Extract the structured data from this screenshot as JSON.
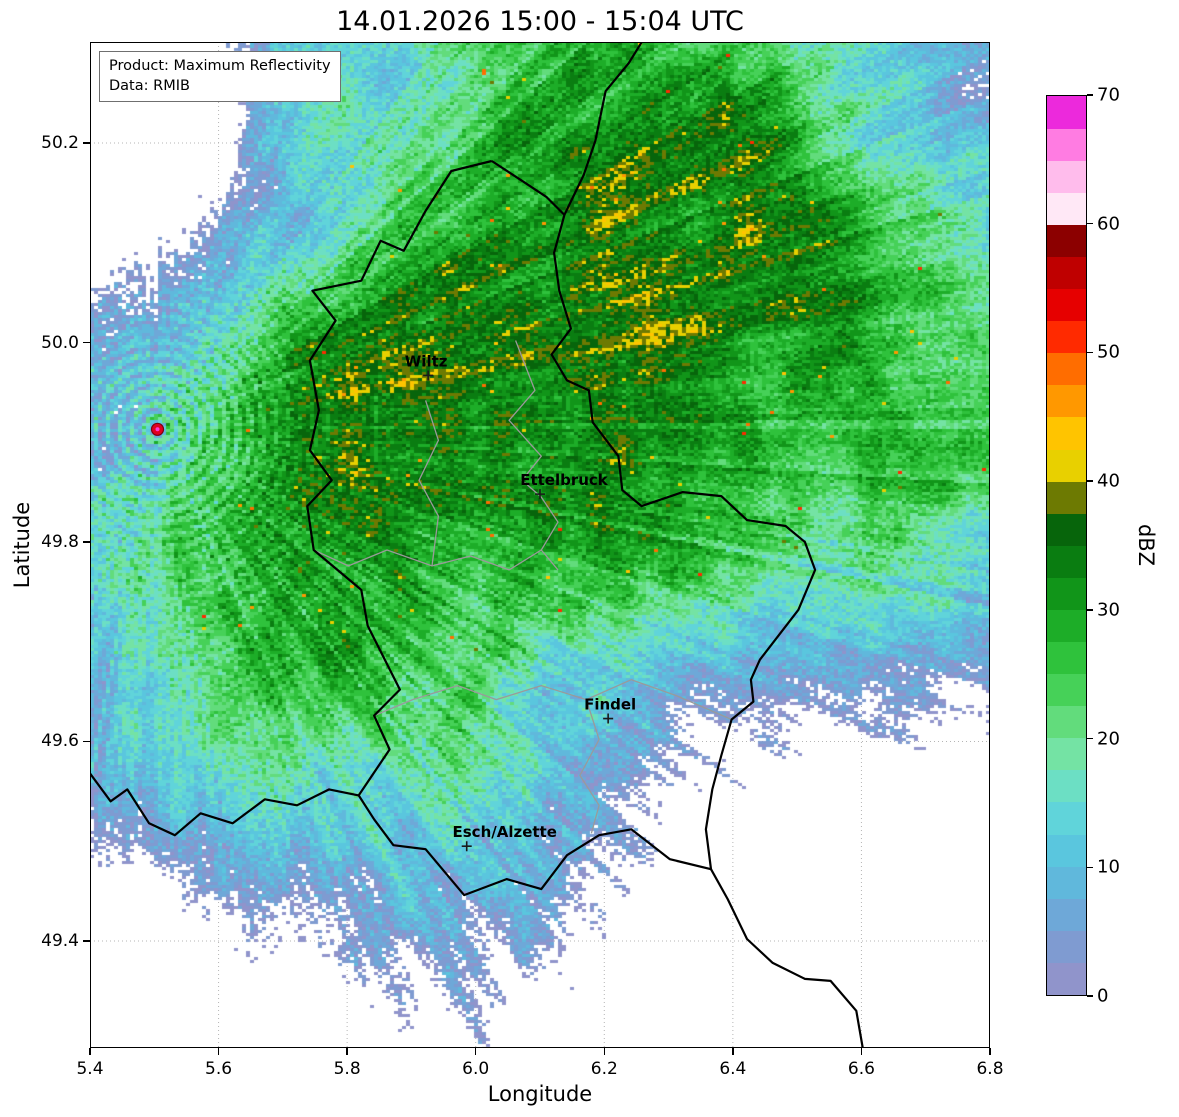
{
  "title": "14.01.2026 15:00 - 15:04 UTC",
  "info_box": {
    "product": "Product: Maximum Reflectivity",
    "data_source": "Data: RMIB"
  },
  "axes": {
    "xlabel": "Longitude",
    "ylabel": "Latitude",
    "x_range": [
      5.4,
      6.8
    ],
    "y_range": [
      49.2927,
      50.3013
    ],
    "x_ticks": [
      {
        "value": 5.4,
        "label": "5.4"
      },
      {
        "value": 5.6,
        "label": "5.6"
      },
      {
        "value": 5.8,
        "label": "5.8"
      },
      {
        "value": 6.0,
        "label": "6.0"
      },
      {
        "value": 6.2,
        "label": "6.2"
      },
      {
        "value": 6.4,
        "label": "6.4"
      },
      {
        "value": 6.6,
        "label": "6.6"
      },
      {
        "value": 6.8,
        "label": "6.8"
      }
    ],
    "y_ticks": [
      {
        "value": 50.2,
        "label": "50.2"
      },
      {
        "value": 50.0,
        "label": "50.0"
      },
      {
        "value": 49.8,
        "label": "49.8"
      },
      {
        "value": 49.6,
        "label": "49.6"
      },
      {
        "value": 49.4,
        "label": "49.4"
      }
    ],
    "grid_color": "#b5b5b5"
  },
  "colorbar": {
    "label": "dBZ",
    "min": 0,
    "max": 70,
    "band_step": 2.5,
    "ticks": [
      {
        "value": 0,
        "label": "0"
      },
      {
        "value": 10,
        "label": "10"
      },
      {
        "value": 20,
        "label": "20"
      },
      {
        "value": 30,
        "label": "30"
      },
      {
        "value": 40,
        "label": "40"
      },
      {
        "value": 50,
        "label": "50"
      },
      {
        "value": 60,
        "label": "60"
      },
      {
        "value": 70,
        "label": "70"
      }
    ],
    "colors": [
      "#9094cb",
      "#7f9bd1",
      "#6ea8d8",
      "#60b8dc",
      "#5ac6de",
      "#60d4da",
      "#6cdfc4",
      "#74e3a4",
      "#62dc7c",
      "#46d158",
      "#2fc23c",
      "#1dad28",
      "#119519",
      "#0a7d11",
      "#07650b",
      "#6d7a02",
      "#e8d000",
      "#ffc400",
      "#ff9800",
      "#ff6d00",
      "#ff2a00",
      "#e60000",
      "#bf0000",
      "#8c0000",
      "#ffe8f6",
      "#ffbcec",
      "#ff7ce2",
      "#ec29dc"
    ]
  },
  "cities": [
    {
      "name": "Wiltz",
      "lon": 5.926,
      "lat": 49.967,
      "label_dx": -2
    },
    {
      "name": "Ettelbruck",
      "lon": 6.1,
      "lat": 49.848,
      "label_dx": 24
    },
    {
      "name": "Findel",
      "lon": 6.206,
      "lat": 49.623,
      "label_dx": 2
    },
    {
      "name": "Esch/Alzette",
      "lon": 5.986,
      "lat": 49.495,
      "label_dx": 38
    }
  ],
  "radar_site": {
    "lon": 5.505,
    "lat": 49.913,
    "marker_color": "#e00020",
    "edge_color": "#7a0010",
    "center_color": "#ff3ad6"
  },
  "map": {
    "border_colors": {
      "country": "#000000",
      "district": "#9a9a9a"
    },
    "country_borders": [
      [
        [
          6.025,
          50.182
        ],
        [
          6.07,
          50.163
        ],
        [
          6.11,
          50.146
        ],
        [
          6.138,
          50.128
        ],
        [
          6.122,
          50.09
        ],
        [
          6.13,
          50.052
        ],
        [
          6.148,
          50.014
        ],
        [
          6.118,
          49.988
        ],
        [
          6.142,
          49.962
        ],
        [
          6.176,
          49.952
        ],
        [
          6.182,
          49.92
        ],
        [
          6.222,
          49.886
        ],
        [
          6.228,
          49.852
        ],
        [
          6.258,
          49.836
        ],
        [
          6.322,
          49.85
        ],
        [
          6.382,
          49.846
        ],
        [
          6.422,
          49.822
        ],
        [
          6.482,
          49.816
        ],
        [
          6.512,
          49.8
        ],
        [
          6.528,
          49.772
        ],
        [
          6.502,
          49.732
        ],
        [
          6.442,
          49.682
        ],
        [
          6.428,
          49.662
        ],
        [
          6.432,
          49.64
        ],
        [
          6.398,
          49.622
        ],
        [
          6.382,
          49.586
        ],
        [
          6.368,
          49.552
        ],
        [
          6.358,
          49.512
        ],
        [
          6.366,
          49.472
        ],
        [
          6.302,
          49.482
        ],
        [
          6.242,
          49.512
        ],
        [
          6.192,
          49.506
        ],
        [
          6.142,
          49.486
        ],
        [
          6.102,
          49.452
        ],
        [
          6.048,
          49.462
        ],
        [
          5.982,
          49.446
        ],
        [
          5.922,
          49.492
        ],
        [
          5.872,
          49.496
        ],
        [
          5.842,
          49.522
        ],
        [
          5.818,
          49.546
        ],
        [
          5.866,
          49.592
        ],
        [
          5.842,
          49.626
        ],
        [
          5.882,
          49.652
        ],
        [
          5.832,
          49.716
        ],
        [
          5.822,
          49.752
        ],
        [
          5.748,
          49.792
        ],
        [
          5.738,
          49.836
        ],
        [
          5.776,
          49.862
        ],
        [
          5.742,
          49.892
        ],
        [
          5.756,
          49.932
        ],
        [
          5.742,
          49.982
        ],
        [
          5.782,
          50.022
        ],
        [
          5.746,
          50.052
        ],
        [
          5.822,
          50.062
        ],
        [
          5.852,
          50.102
        ],
        [
          5.888,
          50.092
        ],
        [
          5.922,
          50.132
        ],
        [
          5.962,
          50.172
        ],
        [
          6.025,
          50.182
        ]
      ],
      [
        [
          6.138,
          50.128
        ],
        [
          6.168,
          50.168
        ],
        [
          6.186,
          50.202
        ],
        [
          6.202,
          50.252
        ],
        [
          6.238,
          50.28
        ],
        [
          6.258,
          50.301
        ]
      ],
      [
        [
          5.4,
          49.568
        ],
        [
          5.432,
          49.54
        ],
        [
          5.458,
          49.552
        ],
        [
          5.492,
          49.518
        ],
        [
          5.532,
          49.506
        ],
        [
          5.572,
          49.528
        ],
        [
          5.622,
          49.518
        ],
        [
          5.672,
          49.542
        ],
        [
          5.722,
          49.536
        ],
        [
          5.772,
          49.552
        ],
        [
          5.818,
          49.546
        ]
      ],
      [
        [
          6.366,
          49.472
        ],
        [
          6.392,
          49.442
        ],
        [
          6.422,
          49.402
        ],
        [
          6.462,
          49.378
        ],
        [
          6.512,
          49.362
        ],
        [
          6.552,
          49.36
        ],
        [
          6.592,
          49.33
        ],
        [
          6.602,
          49.293
        ]
      ]
    ],
    "district_borders": [
      [
        [
          6.062,
          50.002
        ],
        [
          6.092,
          49.952
        ],
        [
          6.052,
          49.922
        ],
        [
          6.102,
          49.886
        ],
        [
          6.072,
          49.862
        ],
        [
          6.102,
          49.845
        ],
        [
          6.128,
          49.82
        ],
        [
          6.102,
          49.792
        ],
        [
          6.128,
          49.772
        ]
      ],
      [
        [
          5.748,
          49.792
        ],
        [
          5.802,
          49.776
        ],
        [
          5.862,
          49.792
        ],
        [
          5.932,
          49.776
        ],
        [
          5.992,
          49.786
        ],
        [
          6.052,
          49.772
        ],
        [
          6.102,
          49.792
        ]
      ],
      [
        [
          5.842,
          49.626
        ],
        [
          5.902,
          49.642
        ],
        [
          5.972,
          49.656
        ],
        [
          6.032,
          49.642
        ],
        [
          6.102,
          49.656
        ],
        [
          6.172,
          49.642
        ],
        [
          6.242,
          49.662
        ],
        [
          6.312,
          49.646
        ],
        [
          6.398,
          49.622
        ]
      ],
      [
        [
          6.172,
          49.642
        ],
        [
          6.192,
          49.602
        ],
        [
          6.162,
          49.566
        ],
        [
          6.192,
          49.536
        ],
        [
          6.18,
          49.508
        ]
      ],
      [
        [
          5.932,
          49.776
        ],
        [
          5.942,
          49.826
        ],
        [
          5.912,
          49.862
        ],
        [
          5.942,
          49.902
        ],
        [
          5.922,
          49.942
        ]
      ]
    ]
  },
  "field_model": {
    "seed": 7,
    "background": 6,
    "lon_scale": 0.645,
    "south_gradient": {
      "start_lat": 49.58,
      "slope": 58
    },
    "blobs": [
      [
        6.15,
        49.95,
        0.55,
        0.33,
        16
      ],
      [
        5.83,
        49.87,
        0.18,
        0.13,
        8
      ],
      [
        6.45,
        50.1,
        0.35,
        0.22,
        9
      ],
      [
        6.0,
        50.16,
        0.5,
        0.28,
        7
      ],
      [
        5.62,
        49.77,
        0.28,
        0.22,
        6
      ],
      [
        5.92,
        49.44,
        0.55,
        0.22,
        6
      ],
      [
        6.62,
        49.72,
        0.35,
        0.3,
        4
      ],
      [
        5.55,
        50.23,
        0.22,
        0.13,
        -26
      ],
      [
        6.72,
        49.34,
        0.33,
        0.2,
        -28
      ],
      [
        5.44,
        49.33,
        0.25,
        0.15,
        -18
      ],
      [
        6.78,
        50.27,
        0.18,
        0.12,
        -14
      ],
      [
        5.7,
        50.24,
        0.07,
        0.05,
        16
      ],
      [
        6.28,
        49.55,
        0.25,
        0.15,
        -6
      ],
      [
        5.42,
        49.97,
        0.12,
        0.25,
        -9
      ],
      [
        6.55,
        49.58,
        0.3,
        0.12,
        -10
      ]
    ],
    "rings": {
      "freq": 500,
      "amp": 8,
      "decay": 10,
      "max_r": 0.25
    },
    "ray_noise": [
      [
        480,
        6.5
      ],
      [
        960,
        3.5
      ]
    ],
    "value_noise": [
      [
        9,
        9
      ],
      [
        26,
        7
      ]
    ],
    "white_noise": 7,
    "speckle": {
      "min_v": 20,
      "min_lat": 49.68,
      "threshold": 0.9962,
      "gain": 3600,
      "base": 38
    },
    "echo_threshold": 0.8
  }
}
